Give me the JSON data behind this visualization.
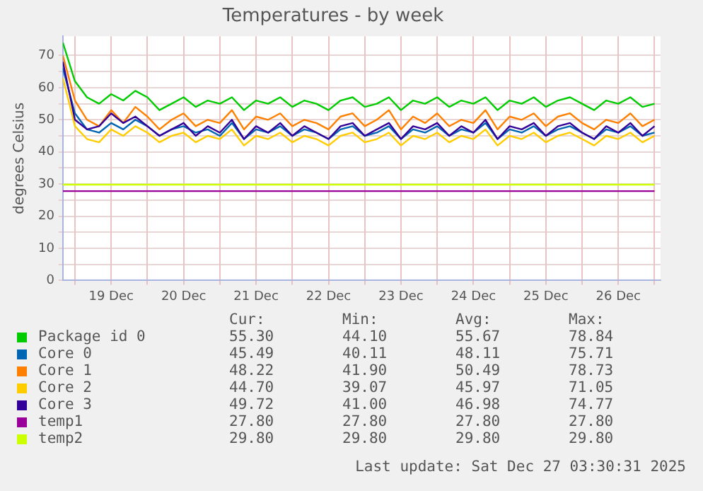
{
  "chart_data": {
    "type": "line",
    "title": "Temperatures - by week",
    "ylabel": "degrees Celsius",
    "x": [
      "2025-12-18T20:00",
      "2025-12-19T00:00",
      "2025-12-19T04:00",
      "2025-12-19T08:00",
      "2025-12-19T12:00",
      "2025-12-19T16:00",
      "2025-12-19T20:00",
      "2025-12-20T00:00",
      "2025-12-20T04:00",
      "2025-12-20T08:00",
      "2025-12-20T12:00",
      "2025-12-20T16:00",
      "2025-12-20T20:00",
      "2025-12-21T00:00",
      "2025-12-21T04:00",
      "2025-12-21T08:00",
      "2025-12-21T12:00",
      "2025-12-21T16:00",
      "2025-12-21T20:00",
      "2025-12-22T00:00",
      "2025-12-22T04:00",
      "2025-12-22T08:00",
      "2025-12-22T12:00",
      "2025-12-22T16:00",
      "2025-12-22T20:00",
      "2025-12-23T00:00",
      "2025-12-23T04:00",
      "2025-12-23T08:00",
      "2025-12-23T12:00",
      "2025-12-23T16:00",
      "2025-12-23T20:00",
      "2025-12-24T00:00",
      "2025-12-24T04:00",
      "2025-12-24T08:00",
      "2025-12-24T12:00",
      "2025-12-24T16:00",
      "2025-12-24T20:00",
      "2025-12-25T00:00",
      "2025-12-25T04:00",
      "2025-12-25T08:00",
      "2025-12-25T12:00",
      "2025-12-25T16:00",
      "2025-12-25T20:00",
      "2025-12-26T00:00",
      "2025-12-26T04:00",
      "2025-12-26T08:00",
      "2025-12-26T12:00",
      "2025-12-26T16:00",
      "2025-12-26T20:00",
      "2025-12-27T00:00"
    ],
    "series": [
      {
        "name": "Package id 0",
        "color": "#00cc00",
        "values": [
          74,
          62,
          57,
          55,
          58,
          56,
          59,
          57,
          53,
          55,
          57,
          54,
          56,
          55,
          57,
          53,
          56,
          55,
          57,
          54,
          56,
          55,
          53,
          56,
          57,
          54,
          55,
          57,
          53,
          56,
          55,
          57,
          54,
          56,
          55,
          57,
          53,
          56,
          55,
          57,
          54,
          56,
          57,
          55,
          53,
          56,
          55,
          57,
          54,
          55
        ]
      },
      {
        "name": "Core 0",
        "color": "#0066b3",
        "values": [
          66,
          52,
          47,
          46,
          49,
          47,
          50,
          48,
          45,
          47,
          48,
          46,
          47,
          45,
          49,
          44,
          47,
          46,
          48,
          45,
          47,
          46,
          44,
          47,
          48,
          45,
          46,
          48,
          44,
          47,
          46,
          48,
          45,
          47,
          46,
          49,
          44,
          47,
          46,
          48,
          45,
          47,
          48,
          46,
          44,
          47,
          46,
          48,
          45,
          46
        ]
      },
      {
        "name": "Core 1",
        "color": "#ff8000",
        "values": [
          70,
          56,
          50,
          48,
          53,
          49,
          54,
          51,
          47,
          50,
          52,
          48,
          50,
          49,
          53,
          47,
          51,
          50,
          52,
          48,
          50,
          49,
          47,
          51,
          52,
          48,
          50,
          53,
          47,
          51,
          49,
          52,
          48,
          50,
          49,
          53,
          47,
          51,
          50,
          52,
          48,
          51,
          52,
          49,
          47,
          50,
          49,
          52,
          48,
          50
        ]
      },
      {
        "name": "Core 2",
        "color": "#ffcc00",
        "values": [
          63,
          48,
          44,
          43,
          47,
          45,
          48,
          46,
          43,
          45,
          46,
          43,
          45,
          44,
          47,
          42,
          45,
          44,
          46,
          43,
          45,
          44,
          42,
          45,
          46,
          43,
          44,
          46,
          42,
          45,
          44,
          46,
          43,
          45,
          44,
          47,
          42,
          45,
          44,
          46,
          43,
          45,
          46,
          44,
          42,
          45,
          44,
          46,
          43,
          45
        ]
      },
      {
        "name": "Core 3",
        "color": "#330099",
        "values": [
          68,
          50,
          47,
          48,
          52,
          49,
          51,
          48,
          45,
          47,
          49,
          45,
          48,
          46,
          50,
          44,
          48,
          46,
          49,
          45,
          48,
          46,
          44,
          48,
          49,
          45,
          47,
          49,
          44,
          48,
          47,
          49,
          45,
          48,
          46,
          50,
          44,
          48,
          47,
          49,
          45,
          48,
          49,
          46,
          44,
          48,
          46,
          49,
          45,
          48
        ]
      },
      {
        "name": "temp1",
        "color": "#990099",
        "x": [
          "2025-12-18T20:00",
          "2025-12-27T00:00"
        ],
        "values": [
          27.8,
          27.8
        ]
      },
      {
        "name": "temp2",
        "color": "#ccff00",
        "x": [
          "2025-12-18T20:00",
          "2025-12-27T00:00"
        ],
        "values": [
          29.8,
          29.8
        ]
      }
    ],
    "xlim": [
      "2025-12-18T20:00",
      "2025-12-27T02:00"
    ],
    "xticks": [
      {
        "value": "2025-12-19T00:00",
        "label": null
      },
      {
        "value": "2025-12-19T12:00",
        "label": "19 Dec"
      },
      {
        "value": "2025-12-20T00:00",
        "label": null
      },
      {
        "value": "2025-12-20T12:00",
        "label": "20 Dec"
      },
      {
        "value": "2025-12-21T00:00",
        "label": null
      },
      {
        "value": "2025-12-21T12:00",
        "label": "21 Dec"
      },
      {
        "value": "2025-12-22T00:00",
        "label": null
      },
      {
        "value": "2025-12-22T12:00",
        "label": "22 Dec"
      },
      {
        "value": "2025-12-23T00:00",
        "label": null
      },
      {
        "value": "2025-12-23T12:00",
        "label": "23 Dec"
      },
      {
        "value": "2025-12-24T00:00",
        "label": null
      },
      {
        "value": "2025-12-24T12:00",
        "label": "24 Dec"
      },
      {
        "value": "2025-12-25T00:00",
        "label": null
      },
      {
        "value": "2025-12-25T12:00",
        "label": "25 Dec"
      },
      {
        "value": "2025-12-26T00:00",
        "label": null
      },
      {
        "value": "2025-12-26T12:00",
        "label": "26 Dec"
      },
      {
        "value": "2025-12-27T00:00",
        "label": null
      }
    ],
    "ylim": [
      0,
      76
    ],
    "yticks": [
      0,
      {
        "value": 5,
        "label": null
      },
      10,
      {
        "value": 15,
        "label": null
      },
      20,
      {
        "value": 25,
        "label": null
      },
      30,
      {
        "value": 35,
        "label": null
      },
      40,
      {
        "value": 45,
        "label": null
      },
      50,
      {
        "value": 55,
        "label": null
      },
      60,
      {
        "value": 65,
        "label": null
      },
      70
    ],
    "grid": true,
    "legend": "bottom",
    "marker": "none",
    "line_style": "solid",
    "annotations": [
      "Cur:",
      "Min:",
      "Avg:",
      "Max:",
      "55.30",
      "44.10",
      "55.67",
      "78.84",
      "45.49",
      "40.11",
      "48.11",
      "75.71",
      "48.22",
      "41.90",
      "50.49",
      "78.73",
      "44.70",
      "39.07",
      "45.97",
      "71.05",
      "49.72",
      "41.00",
      "46.98",
      "74.77",
      "27.80",
      "27.80",
      "27.80",
      "27.80",
      "29.80",
      "29.80",
      "29.80",
      "29.80",
      "Last update: Sat Dec 27 03:30:31 2025"
    ]
  }
}
